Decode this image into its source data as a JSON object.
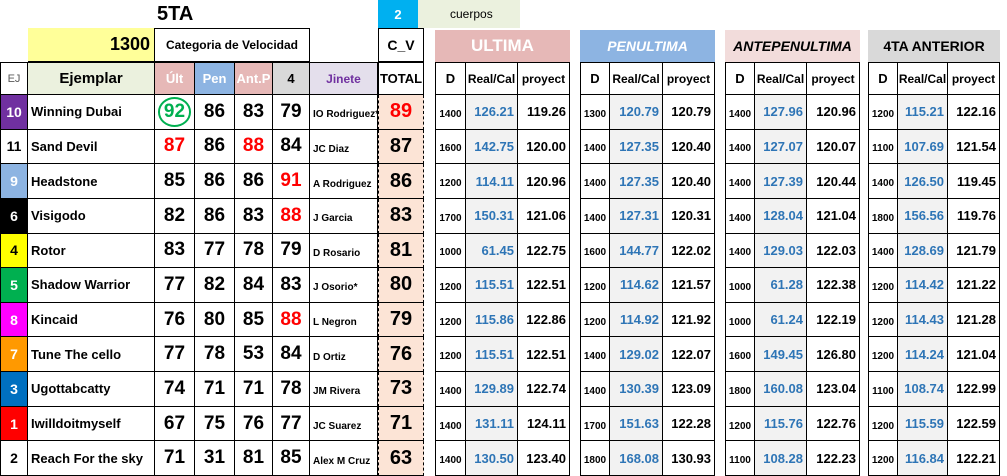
{
  "header": {
    "race": "5TA",
    "cuerpos_value": "2",
    "cuerpos_label": "cuerpos",
    "category_value": "1300",
    "category_label": "Categoria de Velocidad",
    "cv_label": "C_V",
    "groups": [
      "ULTIMA",
      "PENULTIMA",
      "ANTEPENULTIMA",
      "4TA ANTERIOR"
    ]
  },
  "table": {
    "columns": [
      "EJ",
      "Ejemplar",
      "Últ",
      "Pen",
      "Ant.P",
      "4",
      "Jinete",
      "TOTAL"
    ],
    "sub_columns": [
      "D",
      "Real/Cal",
      "proyect"
    ],
    "rows": [
      [
        "10",
        "Winning Dubai",
        "92",
        "86",
        "83",
        "79",
        "IO Rodriguez*",
        "89",
        "1400",
        "126.21",
        "119.26",
        "1300",
        "120.79",
        "120.79",
        "1400",
        "127.96",
        "120.96",
        "1200",
        "115.21",
        "122.16"
      ],
      [
        "11",
        "Sand Devil",
        "87",
        "86",
        "88",
        "84",
        "JC Diaz",
        "87",
        "1600",
        "142.75",
        "120.00",
        "1400",
        "127.35",
        "120.40",
        "1400",
        "127.07",
        "120.07",
        "1100",
        "107.69",
        "121.54"
      ],
      [
        "9",
        "Headstone",
        "85",
        "86",
        "86",
        "91",
        "A Rodriguez",
        "86",
        "1200",
        "114.11",
        "120.96",
        "1400",
        "127.35",
        "120.40",
        "1400",
        "127.39",
        "120.44",
        "1400",
        "126.50",
        "119.45"
      ],
      [
        "6",
        "Visigodo",
        "82",
        "86",
        "83",
        "88",
        "J Garcia",
        "83",
        "1700",
        "150.31",
        "121.06",
        "1400",
        "127.31",
        "120.31",
        "1400",
        "128.04",
        "121.04",
        "1800",
        "156.56",
        "119.76"
      ],
      [
        "4",
        "Rotor",
        "83",
        "77",
        "78",
        "79",
        "D Rosario",
        "81",
        "1000",
        "61.45",
        "122.75",
        "1600",
        "144.77",
        "122.02",
        "1400",
        "129.03",
        "122.03",
        "1400",
        "128.69",
        "121.79"
      ],
      [
        "5",
        "Shadow Warrior",
        "77",
        "82",
        "84",
        "83",
        "J Osorio*",
        "80",
        "1200",
        "115.51",
        "122.51",
        "1200",
        "114.62",
        "121.57",
        "1000",
        "61.28",
        "122.38",
        "1200",
        "114.42",
        "121.22"
      ],
      [
        "8",
        "Kincaid",
        "76",
        "80",
        "85",
        "88",
        "L Negron",
        "79",
        "1200",
        "115.86",
        "122.86",
        "1200",
        "114.92",
        "121.92",
        "1000",
        "61.24",
        "122.19",
        "1200",
        "114.43",
        "121.28"
      ],
      [
        "7",
        "Tune The cello",
        "77",
        "78",
        "53",
        "84",
        "D Ortiz",
        "76",
        "1200",
        "115.51",
        "122.51",
        "1400",
        "129.02",
        "122.07",
        "1600",
        "149.45",
        "126.80",
        "1200",
        "114.24",
        "121.04"
      ],
      [
        "3",
        "Ugottabcatty",
        "74",
        "71",
        "71",
        "78",
        "JM Rivera",
        "73",
        "1400",
        "129.89",
        "122.74",
        "1400",
        "130.39",
        "123.09",
        "1800",
        "160.08",
        "123.04",
        "1100",
        "108.74",
        "122.99"
      ],
      [
        "1",
        "Iwilldoitmyself",
        "67",
        "75",
        "76",
        "77",
        "JC Suarez",
        "71",
        "1400",
        "131.11",
        "124.11",
        "1700",
        "151.63",
        "122.28",
        "1200",
        "115.76",
        "122.76",
        "1200",
        "115.59",
        "122.59"
      ],
      [
        "2",
        "Reach For the sky",
        "71",
        "31",
        "81",
        "85",
        "Alex M Cruz",
        "63",
        "1400",
        "130.50",
        "123.40",
        "1800",
        "168.08",
        "130.93",
        "1100",
        "108.28",
        "122.23",
        "1200",
        "116.84",
        "122.21"
      ]
    ]
  }
}
